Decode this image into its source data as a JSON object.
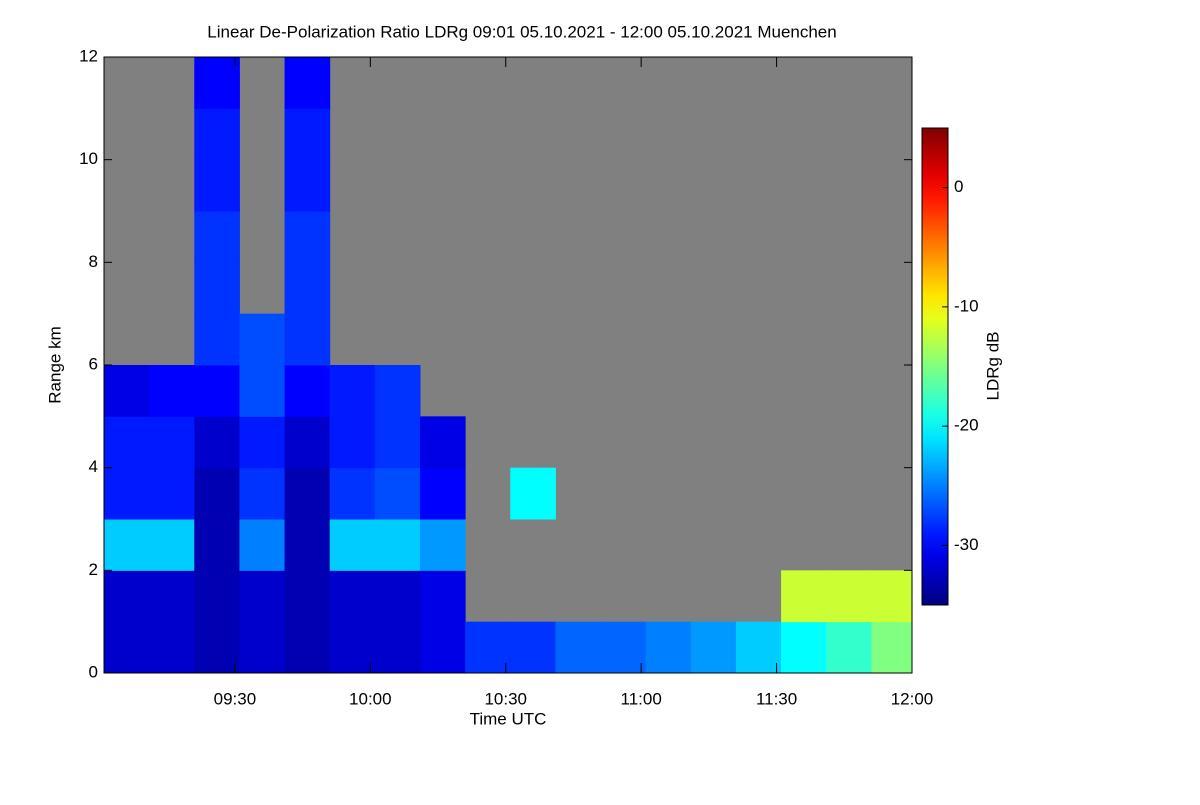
{
  "chart_data": {
    "type": "heatmap",
    "title": "Linear De-Polarization Ratio LDRg   09:01 05.10.2021 - 12:00 05.10.2021 Muenchen",
    "x_label": "Time UTC",
    "y_label": "Range km",
    "colorbar_label": "LDRg dB",
    "colormap": "jet",
    "missing_color": "#808080",
    "xlim": [
      541,
      720
    ],
    "xticks": [
      {
        "value": 570,
        "label": "09:30"
      },
      {
        "value": 600,
        "label": "10:00"
      },
      {
        "value": 630,
        "label": "10:30"
      },
      {
        "value": 660,
        "label": "11:00"
      },
      {
        "value": 690,
        "label": "11:30"
      },
      {
        "value": 720,
        "label": "12:00"
      }
    ],
    "ylim": [
      0,
      12
    ],
    "yticks": [
      0,
      2,
      4,
      6,
      8,
      10,
      12
    ],
    "zlim": [
      -35,
      5
    ],
    "zticks": [
      -30,
      -20,
      -10,
      0
    ],
    "x_bins": [
      541,
      551,
      561,
      571,
      581,
      591,
      601,
      611,
      621,
      631,
      641,
      651,
      661,
      671,
      681,
      691,
      701,
      711,
      720
    ],
    "y_bins": [
      0,
      1,
      2,
      3,
      4,
      5,
      6,
      7,
      8,
      9,
      10,
      11,
      12
    ],
    "z": [
      [
        -32,
        -32,
        -33,
        -32,
        -33,
        -32,
        -32,
        -31,
        -28,
        -28,
        -26,
        -26,
        -25,
        -24,
        -22,
        -20,
        -18,
        -15
      ],
      [
        -32,
        -32,
        -33,
        -32,
        -33,
        -32,
        -32,
        -31,
        null,
        null,
        null,
        null,
        null,
        null,
        null,
        -12,
        -12,
        -12
      ],
      [
        -22,
        -22,
        -33,
        -25,
        -33,
        -22,
        -22,
        -24,
        null,
        null,
        null,
        null,
        null,
        null,
        null,
        null,
        null,
        null
      ],
      [
        -29,
        -29,
        -33,
        -28,
        -33,
        -28,
        -27,
        -30,
        null,
        -20,
        null,
        null,
        null,
        null,
        null,
        null,
        null,
        null
      ],
      [
        -29,
        -29,
        -32,
        -29,
        -32,
        -29,
        -28,
        -31,
        null,
        null,
        null,
        null,
        null,
        null,
        null,
        null,
        null,
        null
      ],
      [
        -31,
        -30,
        -30,
        -27,
        -30,
        -29,
        -28,
        null,
        null,
        null,
        null,
        null,
        null,
        null,
        null,
        null,
        null,
        null
      ],
      [
        null,
        null,
        -28,
        -27,
        -28,
        null,
        null,
        null,
        null,
        null,
        null,
        null,
        null,
        null,
        null,
        null,
        null,
        null
      ],
      [
        null,
        null,
        -28,
        null,
        -28,
        null,
        null,
        null,
        null,
        null,
        null,
        null,
        null,
        null,
        null,
        null,
        null,
        null
      ],
      [
        null,
        null,
        -28,
        null,
        -28,
        null,
        null,
        null,
        null,
        null,
        null,
        null,
        null,
        null,
        null,
        null,
        null,
        null
      ],
      [
        null,
        null,
        -29,
        null,
        -29,
        null,
        null,
        null,
        null,
        null,
        null,
        null,
        null,
        null,
        null,
        null,
        null,
        null
      ],
      [
        null,
        null,
        -29,
        null,
        -29,
        null,
        null,
        null,
        null,
        null,
        null,
        null,
        null,
        null,
        null,
        null,
        null,
        null
      ],
      [
        null,
        null,
        -30,
        null,
        -30,
        null,
        null,
        null,
        null,
        null,
        null,
        null,
        null,
        null,
        null,
        null,
        null,
        null
      ]
    ]
  }
}
